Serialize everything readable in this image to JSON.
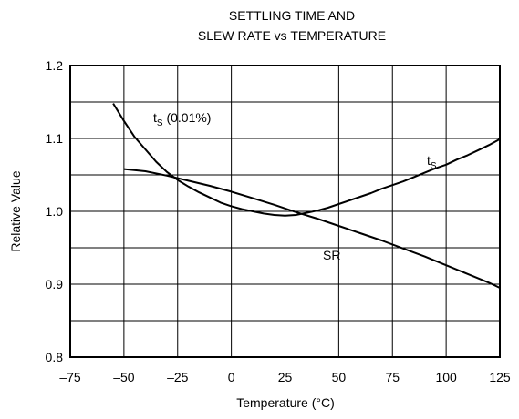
{
  "chart_data": {
    "type": "line",
    "title_line1": "SETTLING TIME AND",
    "title_line2": "SLEW RATE vs TEMPERATURE",
    "xlabel": "Temperature (°C)",
    "ylabel": "Relative Value",
    "xlim": [
      -75,
      125
    ],
    "ylim": [
      0.8,
      1.2
    ],
    "xticks": [
      -75,
      -50,
      -25,
      0,
      25,
      50,
      75,
      100,
      125
    ],
    "xtick_labels": [
      "–75",
      "–50",
      "–25",
      "0",
      "25",
      "50",
      "75",
      "100",
      "125"
    ],
    "yticks": [
      0.8,
      0.9,
      1.0,
      1.1,
      1.2
    ],
    "ytick_labels": [
      "0.8",
      "0.9",
      "1.0",
      "1.1",
      "1.2"
    ],
    "minor_y_grid": [
      0.85,
      0.95,
      1.05,
      1.15
    ],
    "grid": true,
    "series": [
      {
        "name": "tS",
        "label_main": "t",
        "label_sub": "S",
        "label_note": " (0.01%)",
        "x": [
          -55,
          -50,
          -45,
          -40,
          -35,
          -30,
          -25,
          -20,
          -15,
          -10,
          -5,
          0,
          5,
          10,
          15,
          20,
          25,
          30,
          35,
          40,
          45,
          50,
          55,
          60,
          65,
          70,
          75,
          80,
          85,
          90,
          95,
          100,
          105,
          110,
          115,
          120,
          125
        ],
        "y": [
          1.148,
          1.124,
          1.102,
          1.085,
          1.068,
          1.054,
          1.043,
          1.034,
          1.026,
          1.019,
          1.012,
          1.007,
          1.003,
          1.0,
          0.997,
          0.995,
          0.994,
          0.995,
          0.998,
          1.001,
          1.005,
          1.01,
          1.015,
          1.02,
          1.025,
          1.031,
          1.036,
          1.041,
          1.047,
          1.053,
          1.059,
          1.064,
          1.071,
          1.077,
          1.084,
          1.091,
          1.099
        ]
      },
      {
        "name": "SR",
        "label_main": "SR",
        "x": [
          -50,
          -40,
          -30,
          -20,
          -10,
          0,
          10,
          20,
          30,
          40,
          50,
          60,
          70,
          80,
          90,
          100,
          110,
          120,
          125
        ],
        "y": [
          1.058,
          1.055,
          1.049,
          1.042,
          1.035,
          1.027,
          1.018,
          1.009,
          0.999,
          0.99,
          0.98,
          0.97,
          0.96,
          0.949,
          0.938,
          0.926,
          0.914,
          0.902,
          0.895
        ]
      }
    ]
  }
}
